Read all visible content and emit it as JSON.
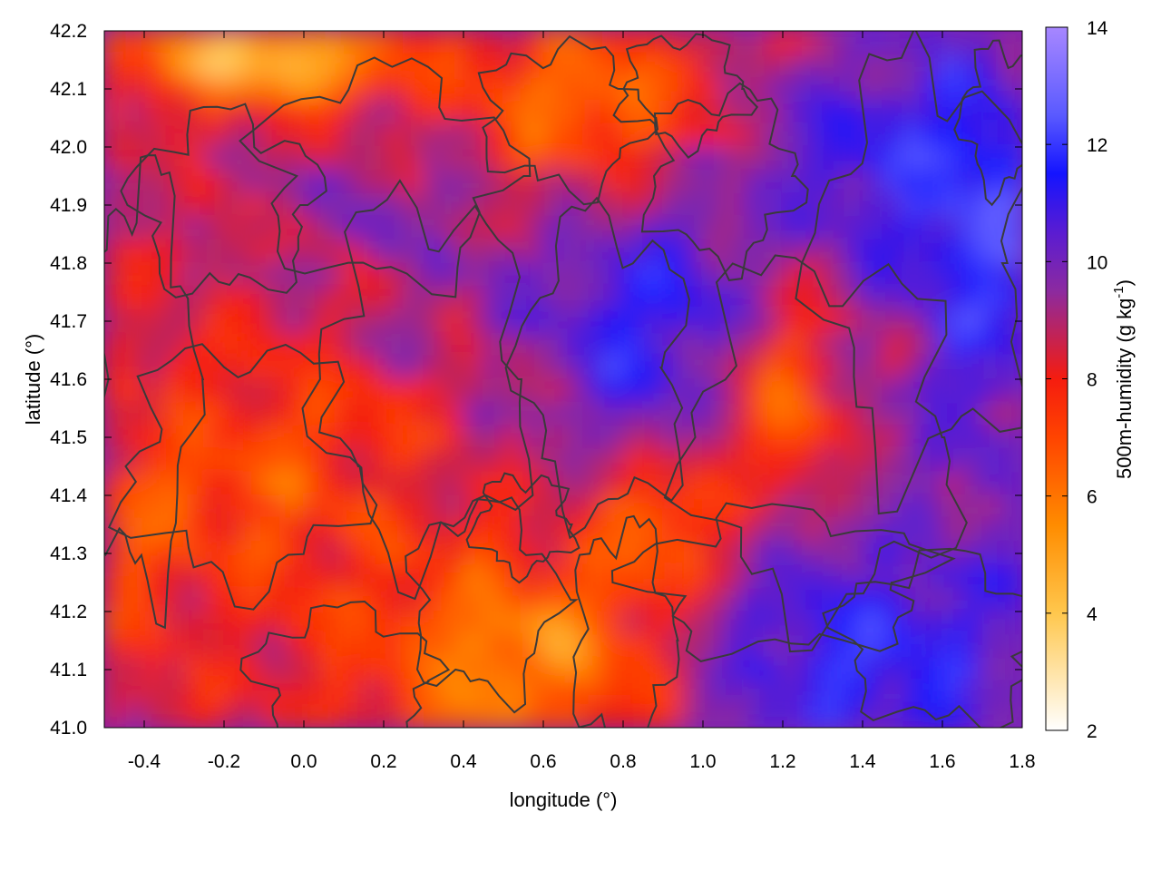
{
  "chart_data": {
    "type": "heatmap",
    "title": "",
    "xlabel": "longitude (°)",
    "ylabel": "latitude (°)",
    "xlim": [
      -0.5,
      1.8
    ],
    "ylim": [
      41.0,
      42.2
    ],
    "xticks": [
      "-0.4",
      "-0.2",
      "0.0",
      "0.2",
      "0.4",
      "0.6",
      "0.8",
      "1.0",
      "1.2",
      "1.4",
      "1.6",
      "1.8"
    ],
    "xtick_values": [
      -0.4,
      -0.2,
      0.0,
      0.2,
      0.4,
      0.6,
      0.8,
      1.0,
      1.2,
      1.4,
      1.6,
      1.8
    ],
    "yticks": [
      "41.0",
      "41.1",
      "41.2",
      "41.3",
      "41.4",
      "41.5",
      "41.6",
      "41.7",
      "41.8",
      "41.9",
      "42.0",
      "42.1",
      "42.2"
    ],
    "ytick_values": [
      41.0,
      41.1,
      41.2,
      41.3,
      41.4,
      41.5,
      41.6,
      41.7,
      41.8,
      41.9,
      42.0,
      42.1,
      42.2
    ],
    "colorbar": {
      "label": "500m-humidity (g kg-1)",
      "label_main": "500m-humidity (g kg",
      "label_exp": "-1",
      "label_close": ")",
      "range": [
        2,
        14
      ],
      "ticks": [
        "2",
        "4",
        "6",
        "8",
        "10",
        "12",
        "14"
      ],
      "tick_values": [
        2,
        4,
        6,
        8,
        10,
        12,
        14
      ],
      "colors": [
        {
          "value": 2,
          "color": "#ffffff"
        },
        {
          "value": 4,
          "color": "#ffc74d"
        },
        {
          "value": 5.5,
          "color": "#ff8c00"
        },
        {
          "value": 7,
          "color": "#ff4400"
        },
        {
          "value": 8,
          "color": "#f51c0f"
        },
        {
          "value": 9.5,
          "color": "#8c2aa0"
        },
        {
          "value": 10.5,
          "color": "#5a1cd2"
        },
        {
          "value": 11.5,
          "color": "#1414ff"
        },
        {
          "value": 12.5,
          "color": "#5a5aff"
        },
        {
          "value": 14,
          "color": "#a787ff"
        }
      ]
    },
    "contour_color": "#3a3a3a",
    "approx_field_features": [
      {
        "region": "north-west corner (lon -0.5..0.2, lat 42.05..42.2)",
        "humidity": 4
      },
      {
        "region": "west-central (lon -0.5..0.3, lat 41.2..41.7)",
        "humidity": 7.5
      },
      {
        "region": "north-central (lon -0.3..0.6, lat 41.6..42.1)",
        "humidity": 9.5
      },
      {
        "region": "central (lon 0.6..1.0, lat 41.5..41.9)",
        "humidity": 11.5
      },
      {
        "region": "south-central (lon 0.2..0.9, lat 41.0..41.3)",
        "humidity": 5.5
      },
      {
        "region": "south-east sea (lon 0.9..1.8, lat 41.0..41.35)",
        "humidity": 11.5
      },
      {
        "region": "east (lon 1.4..1.8, lat 41.4..42.1)",
        "humidity": 11.8
      },
      {
        "region": "north-east (lon 0.5..1.2, lat 41.9..42.2)",
        "humidity": 7.5
      },
      {
        "region": "east-central (lon 1.0..1.4, lat 41.45..41.75)",
        "humidity": 6.5
      }
    ]
  }
}
